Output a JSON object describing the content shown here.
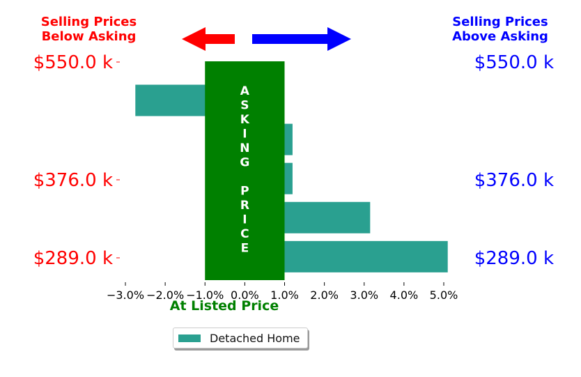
{
  "headers": {
    "below_asking": [
      "Selling Prices",
      "Below Asking"
    ],
    "above_asking": [
      "Selling Prices",
      "Above Asking"
    ]
  },
  "center_label": "ASKING PRICE",
  "xlabel": "At Listed Price",
  "legend_label": "Detached Home",
  "colors": {
    "below": "#ff0000",
    "above": "#0000ff",
    "bar": "#2aa090",
    "asking_band": "#008000",
    "xlabel": "#008000"
  },
  "chart_data": {
    "type": "bar",
    "orientation": "horizontal",
    "y_ticks": [
      "$550.0 k",
      "$376.0 k",
      "$289.0 k"
    ],
    "x_ticks": [
      "−3.0%",
      "−2.0%",
      "−1.0%",
      "0.0%",
      "1.0%",
      "2.0%",
      "3.0%",
      "4.0%",
      "5.0%"
    ],
    "xlim": [
      -3.0,
      5.0
    ],
    "asking_band": [
      -1.0,
      1.0
    ],
    "series": [
      {
        "name": "Detached Home",
        "values": [
          -2.75,
          1.2,
          1.2,
          3.15,
          5.1
        ]
      }
    ],
    "xlabel": "At Listed Price",
    "legend": "bottom-center",
    "grid": false
  }
}
